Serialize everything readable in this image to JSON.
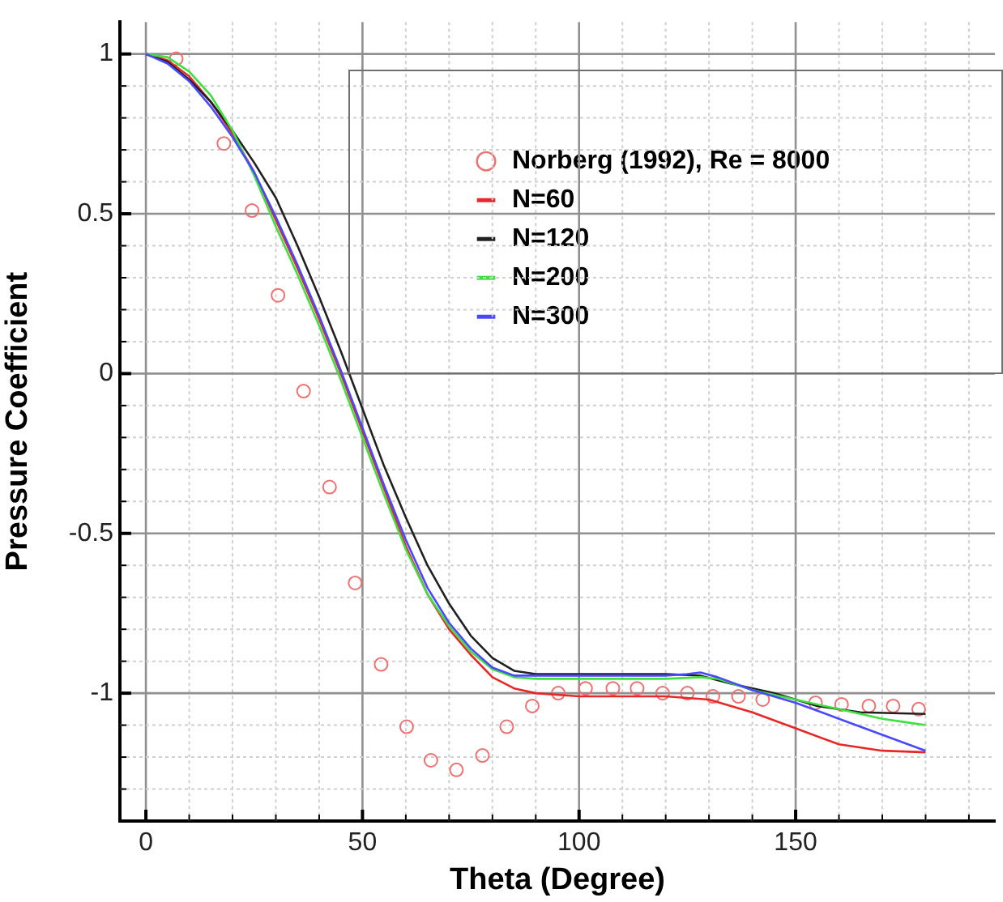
{
  "chart_data": {
    "type": "line",
    "xlabel": "Theta (Degree)",
    "ylabel": "Pressure Coefficient",
    "xlim": [
      -6,
      196
    ],
    "ylim": [
      -1.4,
      1.1
    ],
    "xticks": [
      0,
      {
        "value": 10,
        "label": null
      },
      {
        "value": 20,
        "label": null
      },
      {
        "value": 30,
        "label": null
      },
      {
        "value": 40,
        "label": null
      },
      50,
      {
        "value": 60,
        "label": null
      },
      {
        "value": 70,
        "label": null
      },
      {
        "value": 80,
        "label": null
      },
      {
        "value": 90,
        "label": null
      },
      100,
      {
        "value": 110,
        "label": null
      },
      {
        "value": 120,
        "label": null
      },
      {
        "value": 130,
        "label": null
      },
      {
        "value": 140,
        "label": null
      },
      150,
      {
        "value": 160,
        "label": null
      },
      {
        "value": 170,
        "label": null
      },
      {
        "value": 180,
        "label": null
      },
      {
        "value": 190,
        "label": null
      }
    ],
    "yticks": [
      {
        "value": -1.3,
        "label": null
      },
      {
        "value": -1.2,
        "label": null
      },
      {
        "value": -1.1,
        "label": null
      },
      -1,
      {
        "value": -0.9,
        "label": null
      },
      {
        "value": -0.8,
        "label": null
      },
      {
        "value": -0.7,
        "label": null
      },
      {
        "value": -0.6,
        "label": null
      },
      -0.5,
      {
        "value": -0.4,
        "label": null
      },
      {
        "value": -0.3,
        "label": null
      },
      {
        "value": -0.2,
        "label": null
      },
      {
        "value": -0.1,
        "label": null
      },
      0,
      {
        "value": 0.1,
        "label": null
      },
      {
        "value": 0.2,
        "label": null
      },
      {
        "value": 0.3,
        "label": null
      },
      {
        "value": 0.4,
        "label": null
      },
      0.5,
      {
        "value": 0.6,
        "label": null
      },
      {
        "value": 0.7,
        "label": null
      },
      {
        "value": 0.8,
        "label": null
      },
      {
        "value": 0.9,
        "label": null
      },
      1
    ],
    "grid": true,
    "legend": "top right",
    "series": [
      {
        "name": "Norberg (1992), Re = 8000",
        "type": "scatter",
        "marker": "circle",
        "color": "#f07070",
        "x": [
          7,
          18,
          24.5,
          30.5,
          36.4,
          42.4,
          48.3,
          54.3,
          60.2,
          65.8,
          71.7,
          77.7,
          83.3,
          89.2,
          95.2,
          101.5,
          107.8,
          113.4,
          119.3,
          125,
          130.9,
          136.8,
          142.4,
          154.6,
          160.6,
          166.9,
          172.5,
          178.4
        ],
        "values": [
          0.985,
          0.72,
          0.51,
          0.245,
          -0.055,
          -0.355,
          -0.655,
          -0.91,
          -1.105,
          -1.21,
          -1.24,
          -1.195,
          -1.105,
          -1.04,
          -1,
          -0.985,
          -0.985,
          -0.985,
          -1,
          -1,
          -1.01,
          -1.01,
          -1.02,
          -1.03,
          -1.035,
          -1.04,
          -1.04,
          -1.05
        ]
      },
      {
        "name": "N=60",
        "color": "#e82828",
        "x": [
          0,
          5,
          10,
          15,
          20,
          25,
          30,
          35,
          40,
          45,
          50,
          55,
          60,
          65,
          70,
          75,
          80,
          85,
          90,
          100,
          120,
          130,
          140,
          150,
          160,
          170,
          180
        ],
        "values": [
          1,
          0.98,
          0.93,
          0.85,
          0.75,
          0.63,
          0.48,
          0.33,
          0.17,
          0,
          -0.18,
          -0.36,
          -0.54,
          -0.69,
          -0.8,
          -0.88,
          -0.95,
          -0.985,
          -1,
          -1.01,
          -1.01,
          -1.02,
          -1.06,
          -1.11,
          -1.16,
          -1.18,
          -1.185
        ]
      },
      {
        "name": "N=120",
        "color": "#202020",
        "x": [
          0,
          5,
          10,
          15,
          20,
          25,
          30,
          35,
          40,
          45,
          50,
          55,
          60,
          65,
          70,
          75,
          80,
          85,
          90,
          120,
          128,
          135,
          145,
          155,
          165,
          180
        ],
        "values": [
          1,
          0.975,
          0.92,
          0.85,
          0.76,
          0.66,
          0.55,
          0.4,
          0.24,
          0.07,
          -0.11,
          -0.29,
          -0.45,
          -0.6,
          -0.72,
          -0.82,
          -0.89,
          -0.93,
          -0.94,
          -0.94,
          -0.945,
          -0.97,
          -1,
          -1.04,
          -1.06,
          -1.065
        ]
      },
      {
        "name": "N=200",
        "color": "#40e040",
        "x": [
          0,
          5,
          10,
          15,
          20,
          25,
          30,
          35,
          40,
          45,
          50,
          55,
          60,
          65,
          70,
          75,
          80,
          85,
          90,
          120,
          128,
          132,
          140,
          150,
          160,
          170,
          175,
          180
        ],
        "values": [
          1,
          0.99,
          0.945,
          0.87,
          0.76,
          0.62,
          0.46,
          0.31,
          0.15,
          -0.02,
          -0.2,
          -0.38,
          -0.55,
          -0.69,
          -0.79,
          -0.87,
          -0.925,
          -0.95,
          -0.955,
          -0.955,
          -0.95,
          -0.955,
          -0.99,
          -1.02,
          -1.05,
          -1.08,
          -1.09,
          -1.1
        ]
      },
      {
        "name": "N=300",
        "color": "#4848ff",
        "x": [
          0,
          5,
          10,
          15,
          20,
          25,
          30,
          35,
          40,
          45,
          50,
          55,
          60,
          65,
          70,
          75,
          80,
          85,
          90,
          120,
          125,
          128,
          132,
          140,
          150,
          160,
          170,
          180
        ],
        "values": [
          1,
          0.97,
          0.915,
          0.835,
          0.74,
          0.63,
          0.49,
          0.34,
          0.18,
          0.01,
          -0.17,
          -0.35,
          -0.52,
          -0.67,
          -0.78,
          -0.86,
          -0.92,
          -0.945,
          -0.945,
          -0.945,
          -0.94,
          -0.935,
          -0.95,
          -0.99,
          -1.03,
          -1.08,
          -1.13,
          -1.18
        ]
      }
    ]
  }
}
